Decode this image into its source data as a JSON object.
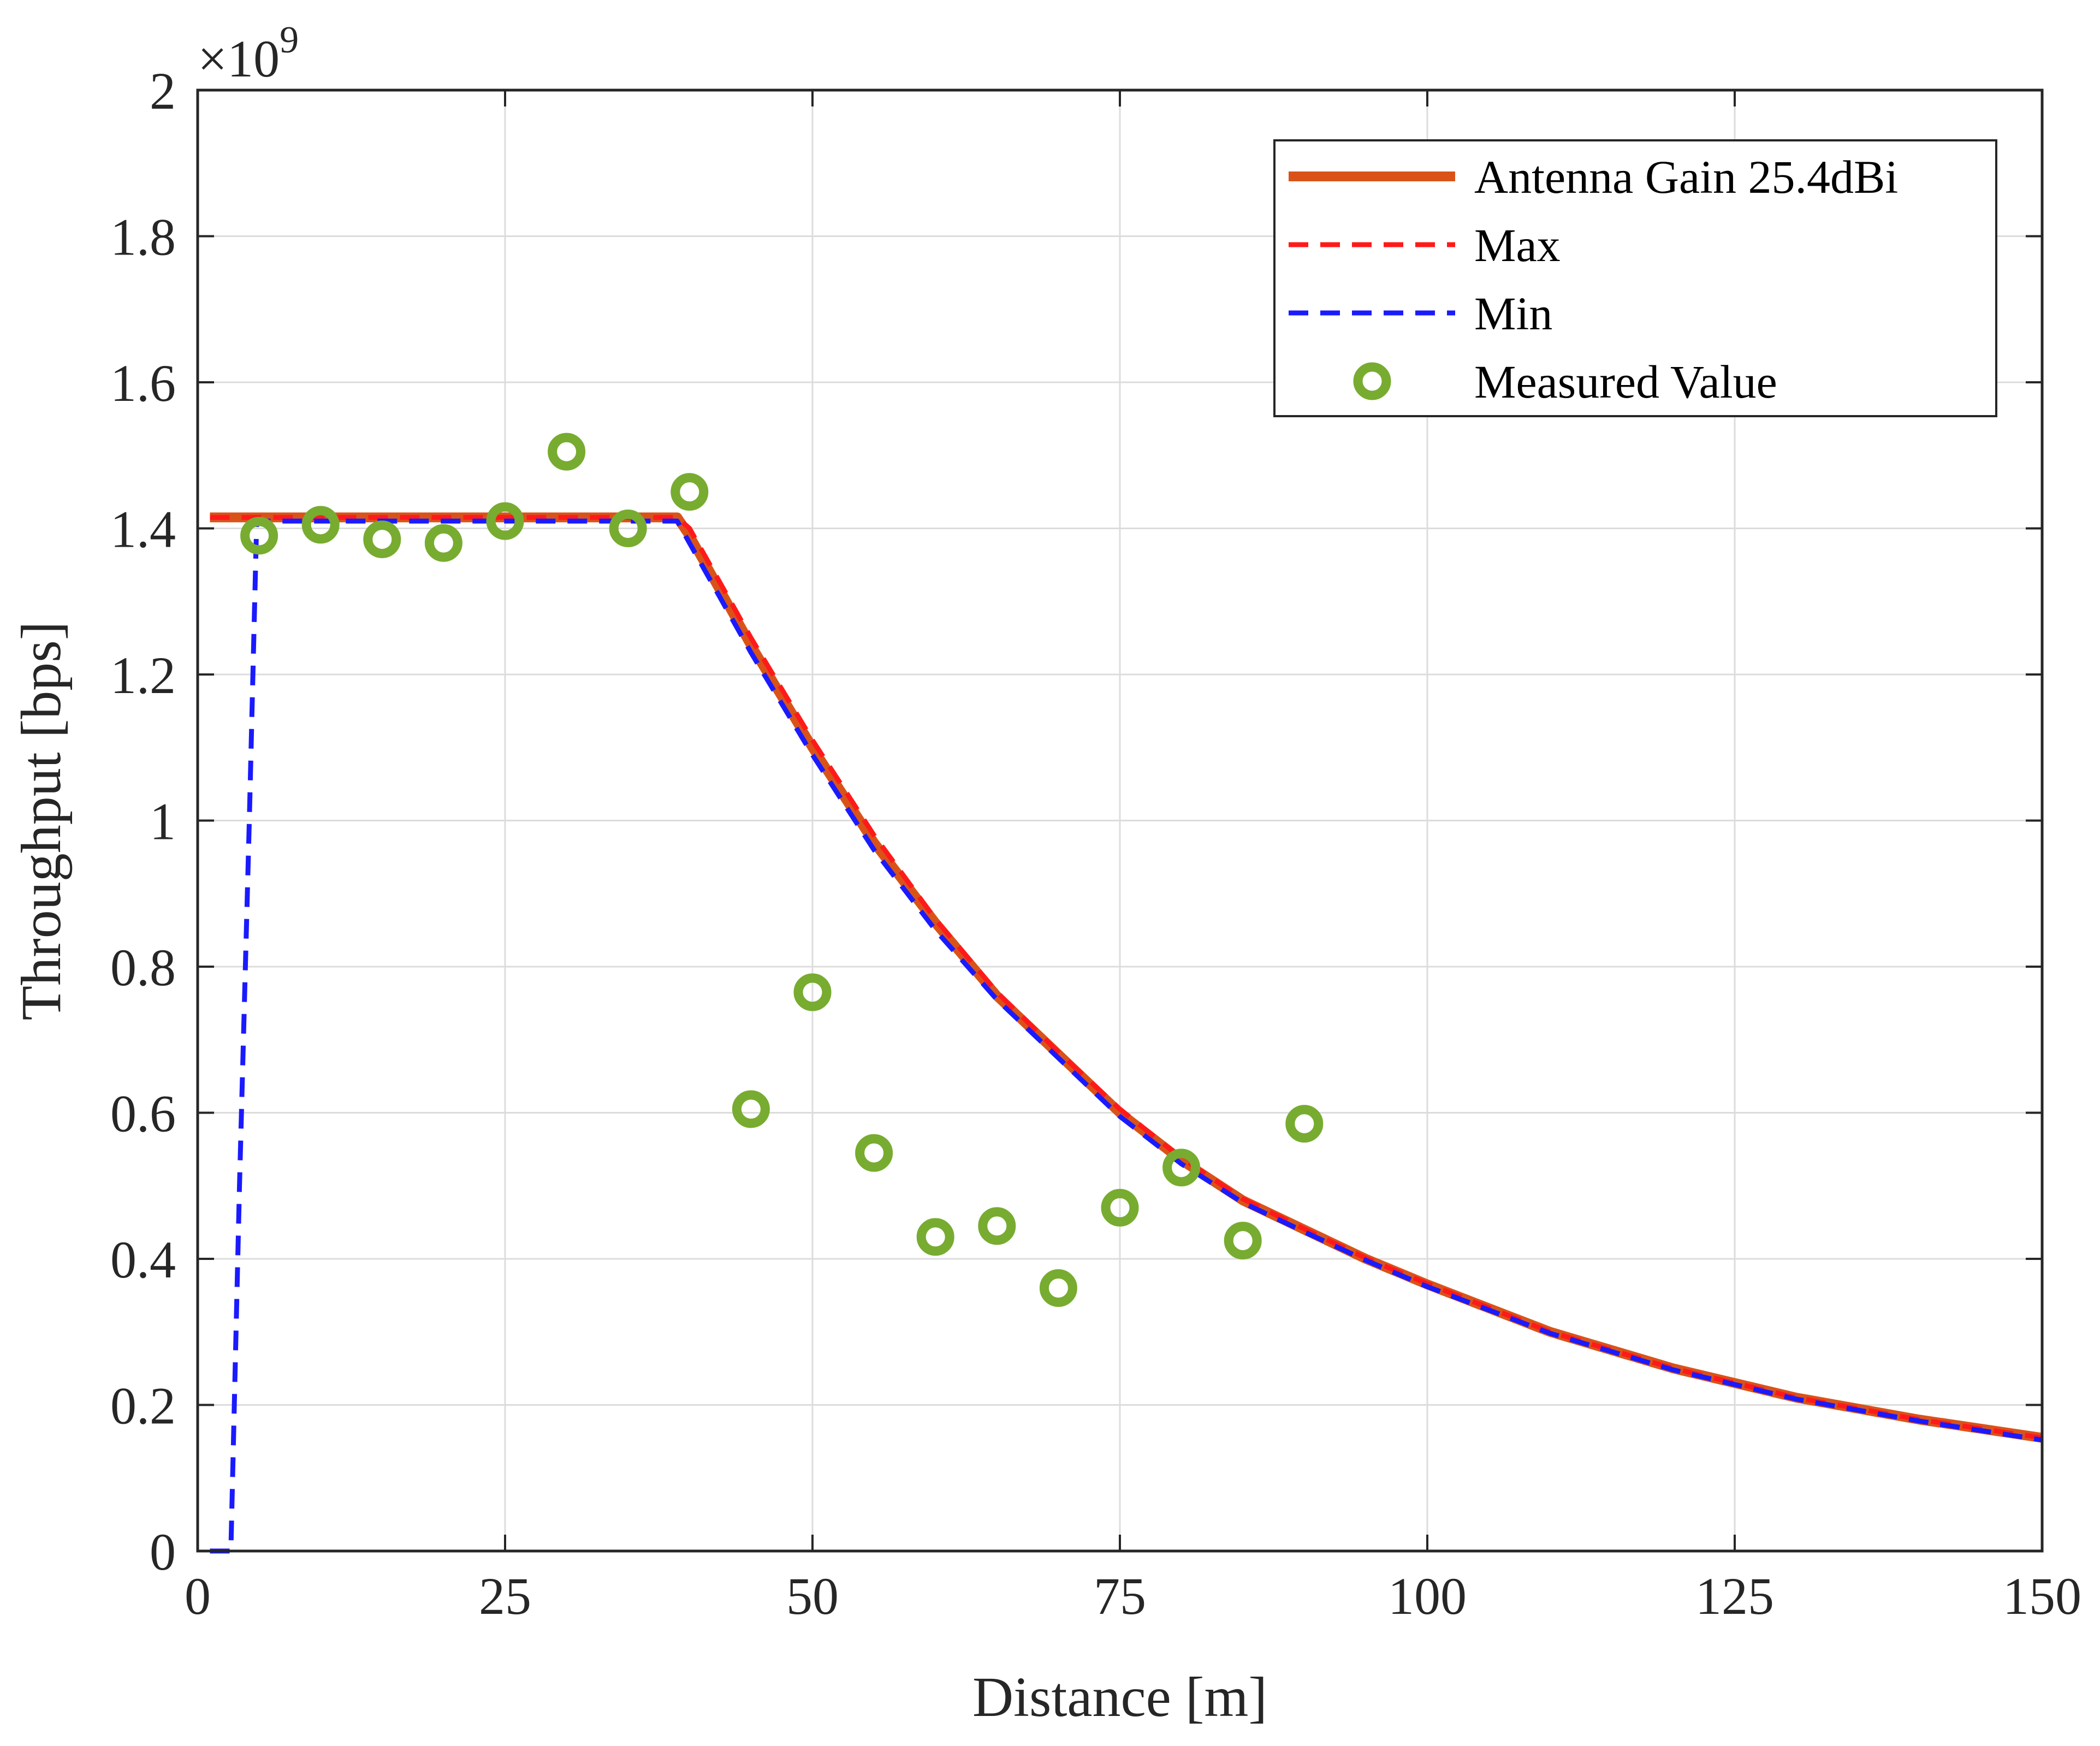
{
  "chart_data": {
    "type": "line",
    "title": "",
    "xlabel": "Distance [m]",
    "ylabel": "Throughput [bps]",
    "xlim": [
      0,
      150
    ],
    "ylim": [
      0,
      2
    ],
    "y_exponent_label": "×10",
    "y_exponent_power": "9",
    "xticks": [
      0,
      25,
      50,
      75,
      100,
      125,
      150
    ],
    "xtick_labels": [
      "0",
      "25",
      "50",
      "75",
      "100",
      "125",
      "150"
    ],
    "yticks": [
      0,
      0.2,
      0.4,
      0.6,
      0.8,
      1.0,
      1.2,
      1.4,
      1.6,
      1.8,
      2.0
    ],
    "ytick_labels": [
      "0",
      "0.2",
      "0.4",
      "0.6",
      "0.8",
      "1",
      "1.2",
      "1.4",
      "1.6",
      "1.8",
      "2"
    ],
    "grid": true,
    "legend_position": "top-right",
    "series": [
      {
        "name": "Antenna Gain 25.4dBi",
        "style": "solid",
        "color": "#D95319",
        "x": [
          1,
          5,
          10,
          15,
          20,
          25,
          30,
          35,
          39,
          40,
          45,
          50,
          55,
          60,
          65,
          70,
          75,
          80,
          85,
          90,
          95,
          100,
          110,
          120,
          130,
          140,
          150
        ],
        "y": [
          1.415,
          1.415,
          1.415,
          1.415,
          1.415,
          1.415,
          1.415,
          1.415,
          1.415,
          1.39,
          1.24,
          1.1,
          0.97,
          0.86,
          0.76,
          0.68,
          0.6,
          0.535,
          0.48,
          0.44,
          0.4,
          0.365,
          0.3,
          0.25,
          0.21,
          0.18,
          0.155
        ]
      },
      {
        "name": "Max",
        "style": "dashed",
        "color": "#FF1A1A",
        "x": [
          1,
          5,
          10,
          15,
          20,
          25,
          30,
          35,
          39,
          40,
          45,
          50,
          55,
          60,
          65,
          70,
          75,
          80,
          85,
          90,
          95,
          100,
          110,
          120,
          130,
          140,
          150
        ],
        "y": [
          1.415,
          1.415,
          1.415,
          1.415,
          1.415,
          1.415,
          1.415,
          1.415,
          1.415,
          1.4,
          1.25,
          1.11,
          0.98,
          0.865,
          0.765,
          0.683,
          0.605,
          0.538,
          0.482,
          0.441,
          0.401,
          0.366,
          0.3,
          0.25,
          0.21,
          0.18,
          0.155
        ]
      },
      {
        "name": "Min",
        "style": "dashed",
        "color": "#1A1AFF",
        "x": [
          1,
          2.7,
          3.4,
          4.2,
          4.8,
          10,
          15,
          20,
          25,
          30,
          35,
          39,
          40,
          45,
          50,
          55,
          60,
          65,
          70,
          75,
          80,
          85,
          90,
          95,
          100,
          110,
          120,
          130,
          140,
          150
        ],
        "y": [
          0,
          0,
          0.5,
          1.0,
          1.41,
          1.41,
          1.41,
          1.41,
          1.41,
          1.41,
          1.41,
          1.41,
          1.38,
          1.23,
          1.09,
          0.96,
          0.85,
          0.755,
          0.675,
          0.595,
          0.53,
          0.477,
          0.437,
          0.398,
          0.362,
          0.298,
          0.248,
          0.208,
          0.178,
          0.152
        ]
      },
      {
        "name": "Measured Value",
        "style": "markers",
        "marker": "circle",
        "color": "#77AC30",
        "x": [
          5,
          10,
          15,
          20,
          25,
          30,
          35,
          40,
          45,
          50,
          55,
          60,
          65,
          70,
          75,
          80,
          85,
          90
        ],
        "y": [
          1.39,
          1.405,
          1.385,
          1.38,
          1.41,
          1.505,
          1.4,
          1.45,
          0.605,
          0.765,
          0.545,
          0.43,
          0.445,
          0.36,
          0.47,
          0.525,
          0.425,
          0.585
        ]
      }
    ]
  }
}
